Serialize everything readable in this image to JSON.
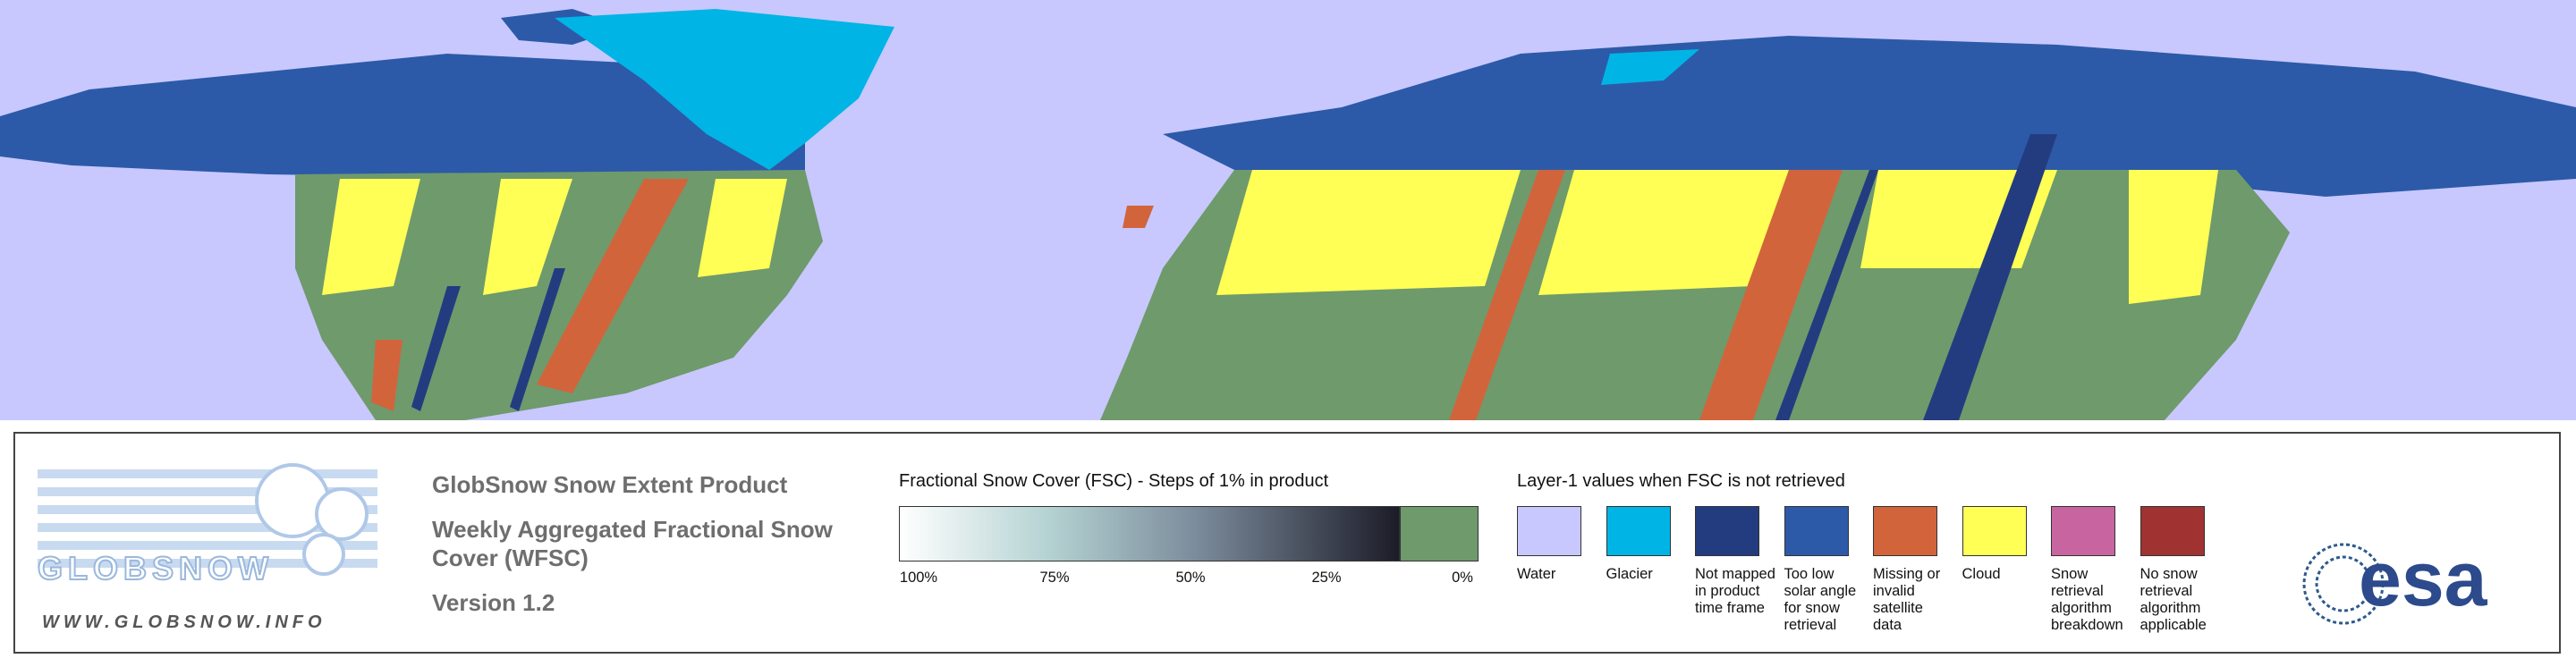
{
  "logo": {
    "name": "GLOBSNOW",
    "url": "WWW.GLOBSNOW.INFO"
  },
  "header": {
    "title": "GlobSnow Snow Extent Product",
    "subtitle_line1": "Weekly Aggregated Fractional Snow",
    "subtitle_line2": "Cover (WFSC)",
    "version": "Version 1.2"
  },
  "fsc_legend": {
    "title": "Fractional Snow Cover (FSC) - Steps of 1% in product",
    "ticks": [
      "100%",
      "75%",
      "50%",
      "25%",
      "0%"
    ],
    "zero_color": "#6f9a6c"
  },
  "layer1_legend": {
    "title": "Layer-1 values when FSC is not retrieved",
    "items": [
      {
        "label": "Water",
        "color": "#c8c8ff"
      },
      {
        "label": "Glacier",
        "color": "#00b4e6"
      },
      {
        "label": "Not mapped in product time frame",
        "color": "#233c80"
      },
      {
        "label": "Too low solar angle for snow retrieval",
        "color": "#2c5aa8"
      },
      {
        "label": "Missing or invalid satellite data",
        "color": "#d2643c"
      },
      {
        "label": "Cloud",
        "color": "#ffff55"
      },
      {
        "label": "Snow retrieval algorithm breakdown",
        "color": "#c864a0"
      },
      {
        "label": "No snow retrieval algorithm applicable",
        "color": "#a03232"
      }
    ]
  },
  "esa_logo": "esa"
}
